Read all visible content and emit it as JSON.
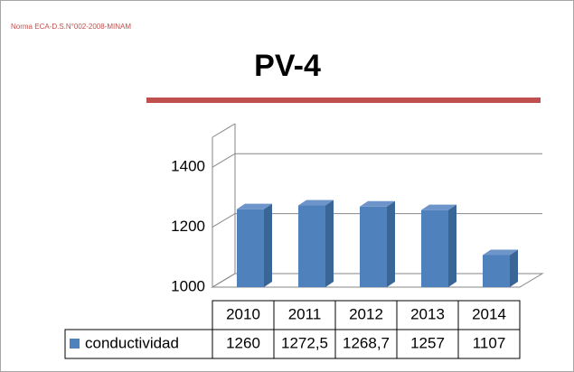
{
  "chart_data": {
    "type": "bar",
    "title": "PV-4",
    "annotation": "Norma ECA-D.S.N°002-2008-MINAM",
    "categories": [
      "2010",
      "2011",
      "2012",
      "2013",
      "2014"
    ],
    "series": [
      {
        "name": "conductividad",
        "color": "#4f81bd",
        "values": [
          1260,
          1272.5,
          1268.7,
          1257,
          1107
        ],
        "value_labels": [
          "1260",
          "1272,5",
          "1268,7",
          "1257",
          "1107"
        ]
      }
    ],
    "ylim": [
      1000,
      1500
    ],
    "yticks": [
      1000,
      1200,
      1400
    ],
    "grid": true
  }
}
